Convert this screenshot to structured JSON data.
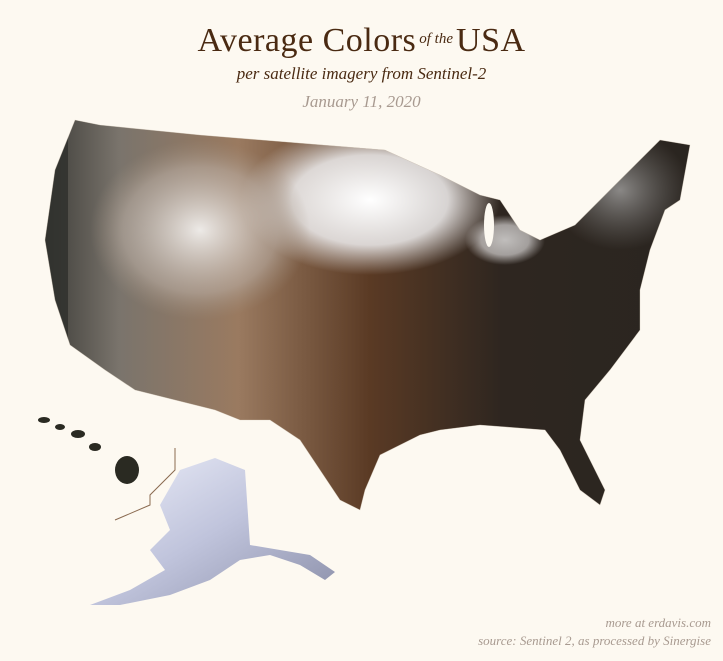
{
  "title": {
    "main_left": "Average Colors",
    "connector": "of the",
    "main_right": "USA"
  },
  "subtitle": "per satellite imagery from Sentinel-2",
  "date": "January 11, 2020",
  "credits": {
    "more": "more at erdavis.com",
    "source": "source: Sentinel 2, as processed by Sinergise"
  },
  "colors": {
    "background": "#fdf9f1",
    "title": "#4a2a12",
    "muted_text": "#a89a90",
    "snow": "#f4f3f3",
    "desert_brown": "#8a6446",
    "dark_southeast": "#2a2520",
    "alaska": "#c8cbe2",
    "hawaii": "#2a2a22"
  }
}
